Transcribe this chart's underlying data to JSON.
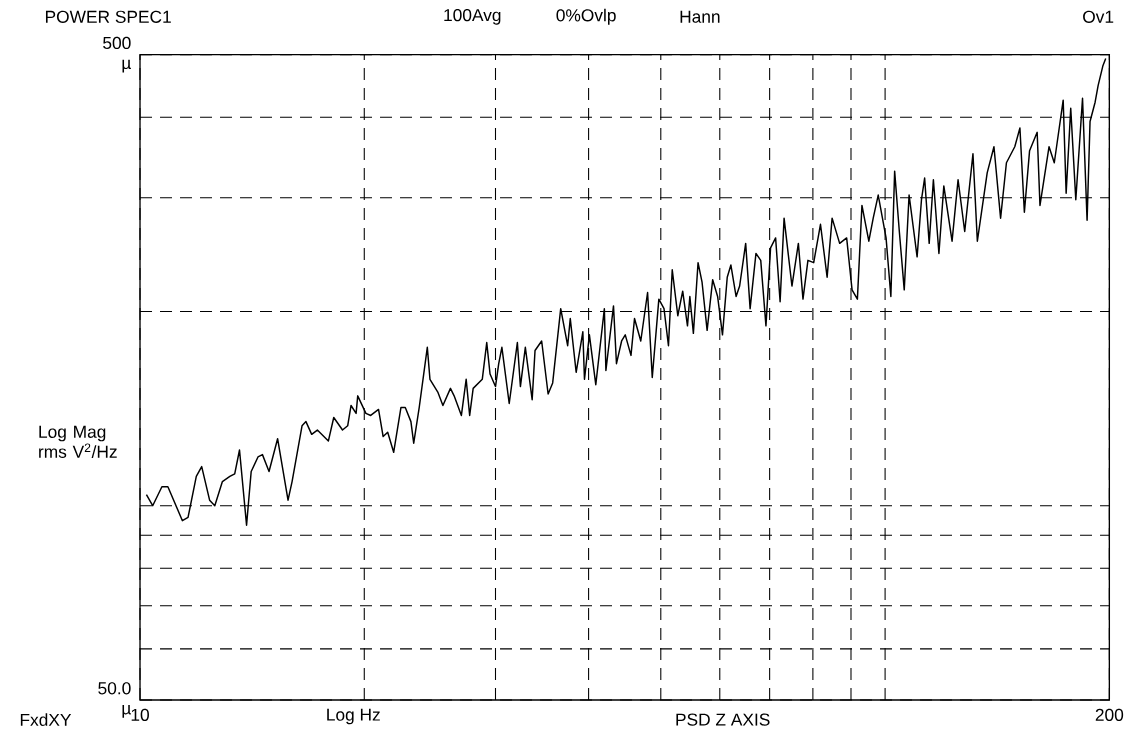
{
  "chart_data": {
    "type": "line",
    "title": "POWER SPEC1",
    "xlabel": "Log Hz",
    "ylabel": "Log Mag rms V$^{2}$/Hz",
    "annotations": [
      "100Avg",
      "0%Ovlp",
      "Hann",
      "Ov1",
      "FxdXY",
      "PSD Z AXIS"
    ],
    "log": "xy",
    "grid": true,
    "marker": "none",
    "line_style": "solid",
    "xlim": [
      10,
      200
    ],
    "ylim": [
      50,
      500
    ],
    "xticks": [
      10,
      {
        "value": 20,
        "label": null
      },
      {
        "value": 30,
        "label": null
      },
      {
        "value": 40,
        "label": null
      },
      {
        "value": 50,
        "label": null
      },
      {
        "value": 60,
        "label": null
      },
      {
        "value": 70,
        "label": null
      },
      {
        "value": 80,
        "label": null
      },
      {
        "value": 90,
        "label": null
      },
      {
        "value": 100,
        "label": null
      },
      200
    ],
    "yticks": [
      {
        "value": 50,
        "label": "50.0 µ"
      },
      {
        "value": 60,
        "label": null
      },
      {
        "value": 70,
        "label": null
      },
      {
        "value": 80,
        "label": null
      },
      {
        "value": 90,
        "label": null
      },
      {
        "value": 100,
        "label": null
      },
      {
        "value": 200,
        "label": null
      },
      {
        "value": 300,
        "label": null
      },
      {
        "value": 400,
        "label": null
      },
      {
        "value": 500,
        "label": "500 µ"
      }
    ],
    "series": [
      {
        "color": "#000000",
        "x": [
          10.2,
          10.4,
          10.7,
          10.9,
          11.4,
          11.6,
          11.9,
          12.1,
          12.4,
          12.6,
          12.9,
          13.2,
          13.4,
          13.6,
          13.9,
          14.1,
          14.4,
          14.6,
          14.9,
          15.3,
          15.8,
          16.0,
          16.5,
          16.7,
          17.0,
          17.3,
          17.9,
          18.2,
          18.7,
          19.0,
          19.2,
          19.5,
          19.6,
          20.1,
          20.4,
          20.9,
          21.2,
          21.5,
          21.9,
          22.4,
          22.7,
          23.1,
          23.3,
          23.7,
          24.3,
          24.5,
          25.1,
          25.5,
          26.1,
          26.4,
          27.0,
          27.4,
          27.7,
          28.0,
          28.8,
          29.2,
          29.5,
          30.0,
          30.3,
          30.6,
          31.3,
          32.1,
          32.4,
          32.9,
          33.6,
          33.9,
          34.6,
          35.3,
          35.8,
          36.7,
          37.5,
          37.8,
          38.5,
          39.3,
          39.5,
          40.1,
          40.9,
          42.0,
          42.2,
          43.2,
          43.6,
          44.3,
          44.8,
          45.6,
          46.1,
          47.0,
          48.0,
          48.7,
          49.7,
          50.5,
          51.2,
          51.8,
          52.7,
          53.5,
          54.3,
          54.7,
          55.3,
          56.1,
          56.8,
          57.7,
          58.7,
          59.6,
          60.5,
          61.4,
          62.1,
          63.1,
          63.8,
          65.0,
          65.9,
          67.1,
          68.1,
          69.2,
          70.2,
          71.3,
          72.3,
          73.2,
          75.0,
          76.5,
          77.6,
          78.8,
          80.2,
          81.9,
          83.6,
          84.9,
          86.9,
          88.8,
          90.3,
          91.8,
          93.1,
          95.1,
          96.4,
          97.9,
          100.3,
          101.8,
          103,
          104.5,
          106.1,
          107.7,
          110.4,
          111.9,
          113,
          114.6,
          116.1,
          118.1,
          119.9,
          123,
          125.3,
          127.9,
          131.2,
          133,
          137.1,
          140,
          142.9,
          145.5,
          149.3,
          151.7,
          153.8,
          156.3,
          160,
          161.4,
          166,
          168.7,
          173.4,
          175,
          177.5,
          180.3,
          184.1,
          186.7,
          188.4,
          191.4,
          193.2,
          196,
          197.8
        ],
        "values": [
          104,
          100,
          107,
          107,
          94.8,
          95.9,
          111,
          115,
          102,
          100,
          109,
          111,
          112,
          122,
          93.3,
          113,
          119,
          120,
          113,
          127,
          102,
          109,
          133,
          135,
          129,
          131,
          126,
          137,
          131,
          133,
          143,
          139,
          148,
          139,
          138,
          141,
          128,
          130,
          121,
          142,
          142,
          135,
          125,
          142,
          176,
          157,
          150,
          143,
          152,
          148,
          138,
          157,
          138,
          152,
          157,
          179,
          160,
          153,
          166,
          176,
          144,
          179,
          153,
          176,
          146,
          174,
          180,
          149,
          155,
          202,
          177,
          195,
          161,
          186,
          157,
          184,
          154,
          202,
          162,
          204,
          166,
          180,
          184,
          171,
          195,
          180,
          214,
          158,
          209,
          202,
          177,
          232,
          197,
          215,
          190,
          211,
          185,
          238,
          222,
          187,
          224,
          211,
          184,
          226,
          236,
          211,
          219,
          255,
          202,
          246,
          240,
          190,
          251,
          260,
          207,
          279,
          219,
          255,
          209,
          240,
          238,
          273,
          226,
          279,
          255,
          260,
          216,
          209,
          292,
          257,
          279,
          303,
          260,
          211,
          330,
          266,
          216,
          303,
          243,
          298,
          322,
          255,
          320,
          246,
          313,
          257,
          320,
          266,
          351,
          257,
          328,
          360,
          279,
          340,
          360,
          385,
          285,
          355,
          379,
          292,
          360,
          340,
          425,
          305,
          413,
          298,
          428,
          277,
          394,
          422,
          448,
          480,
          493
        ]
      }
    ]
  }
}
